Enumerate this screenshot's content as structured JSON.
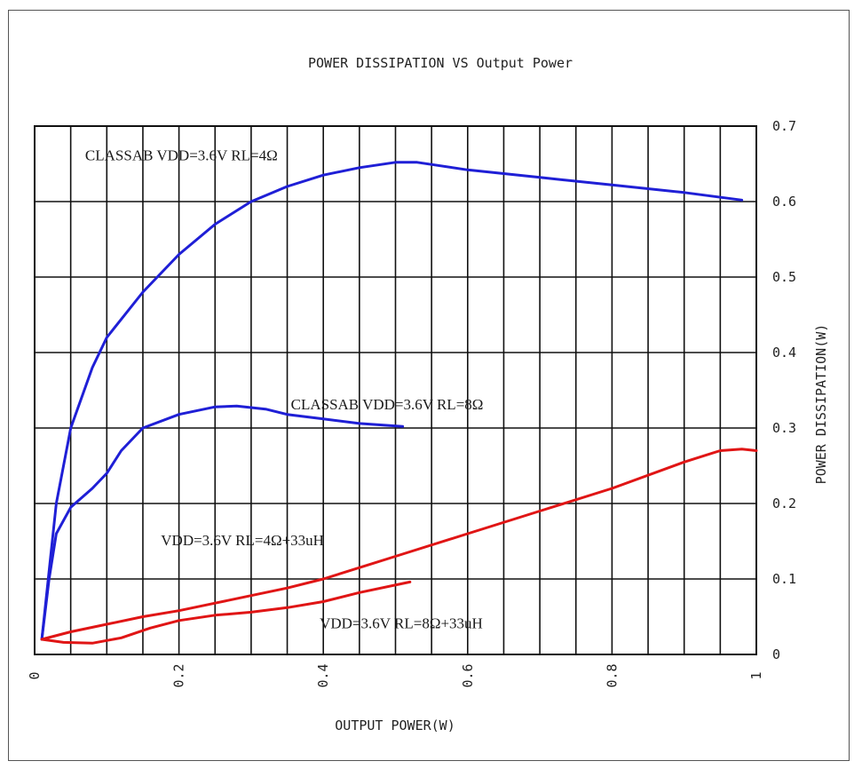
{
  "chart_data": {
    "type": "line",
    "title": "POWER DISSIPATION VS Output Power",
    "xlabel": "OUTPUT POWER(W)",
    "ylabel": "POWER DISSIPATION(W)",
    "xlim": [
      0,
      1
    ],
    "ylim": [
      0,
      0.7
    ],
    "x_ticks": [
      "0",
      "0.2",
      "0.4",
      "0.6",
      "0.8",
      "1"
    ],
    "y_ticks": [
      "0",
      "0.1",
      "0.2",
      "0.3",
      "0.4",
      "0.5",
      "0.6",
      "0.7"
    ],
    "grid": true,
    "y_axis_side": "right",
    "series": [
      {
        "name": "CLASSAB VDD=3.6V RL=4Ω",
        "color": "#1f1fd6",
        "x": [
          0.01,
          0.03,
          0.05,
          0.08,
          0.1,
          0.15,
          0.2,
          0.25,
          0.3,
          0.35,
          0.4,
          0.45,
          0.5,
          0.53,
          0.6,
          0.7,
          0.8,
          0.9,
          0.98
        ],
        "y": [
          0.02,
          0.2,
          0.3,
          0.38,
          0.42,
          0.48,
          0.53,
          0.57,
          0.6,
          0.62,
          0.635,
          0.645,
          0.652,
          0.652,
          0.642,
          0.632,
          0.622,
          0.612,
          0.602
        ]
      },
      {
        "name": "CLASSAB VDD=3.6V RL=8Ω",
        "color": "#1f1fd6",
        "x": [
          0.01,
          0.02,
          0.03,
          0.05,
          0.08,
          0.1,
          0.12,
          0.15,
          0.2,
          0.25,
          0.28,
          0.32,
          0.35,
          0.4,
          0.45,
          0.51
        ],
        "y": [
          0.02,
          0.1,
          0.16,
          0.195,
          0.22,
          0.24,
          0.27,
          0.3,
          0.318,
          0.328,
          0.329,
          0.325,
          0.318,
          0.312,
          0.306,
          0.302
        ]
      },
      {
        "name": "VDD=3.6V RL=4Ω+33uH",
        "color": "#e01515",
        "x": [
          0.01,
          0.05,
          0.1,
          0.15,
          0.2,
          0.25,
          0.3,
          0.35,
          0.4,
          0.5,
          0.6,
          0.7,
          0.8,
          0.9,
          0.95,
          0.98,
          1.0
        ],
        "y": [
          0.02,
          0.03,
          0.04,
          0.05,
          0.058,
          0.068,
          0.078,
          0.088,
          0.1,
          0.13,
          0.16,
          0.19,
          0.22,
          0.255,
          0.27,
          0.272,
          0.27
        ]
      },
      {
        "name": "VDD=3.6V RL=8Ω+33uH",
        "color": "#e01515",
        "x": [
          0.01,
          0.04,
          0.08,
          0.12,
          0.16,
          0.2,
          0.25,
          0.3,
          0.35,
          0.4,
          0.45,
          0.52
        ],
        "y": [
          0.02,
          0.016,
          0.015,
          0.022,
          0.035,
          0.045,
          0.052,
          0.056,
          0.062,
          0.07,
          0.082,
          0.096
        ]
      }
    ],
    "annotations": [
      {
        "text": "CLASSAB VDD=3.6V RL=4Ω",
        "x": 0.07,
        "y": 0.655,
        "color": "#1a1a1a"
      },
      {
        "text": "CLASSAB VDD=3.6V RL=8Ω",
        "x": 0.355,
        "y": 0.325,
        "color": "#1a1a1a"
      },
      {
        "text": "VDD=3.6V RL=4Ω+33uH",
        "x": 0.175,
        "y": 0.145,
        "color": "#1a1a1a"
      },
      {
        "text": "VDD=3.6V RL=8Ω+33uH",
        "x": 0.395,
        "y": 0.035,
        "color": "#1a1a1a"
      }
    ]
  }
}
